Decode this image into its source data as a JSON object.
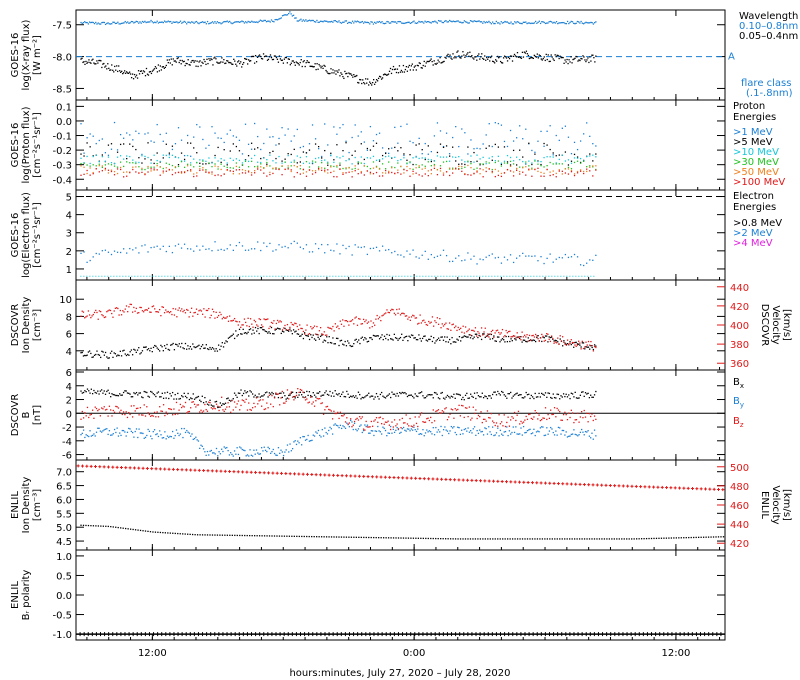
{
  "xaxis": {
    "label": "hours:minutes, July 27, 2020 – July 28, 2020",
    "range_hours": [
      8.5,
      38.25
    ],
    "ticks": [
      {
        "h": 12,
        "label": "12:00"
      },
      {
        "h": 24,
        "label": "0:00"
      },
      {
        "h": 36,
        "label": "12:00"
      }
    ]
  },
  "colors": {
    "black": "#000000",
    "blue": "#1a7fd4",
    "cyan": "#16c7d9",
    "green": "#1fc21f",
    "yellow": "#e6c800",
    "orange": "#f08020",
    "red": "#e21818",
    "magenta": "#e020e0"
  },
  "chart_data": [
    {
      "type": "scatter",
      "panel": "xray",
      "ylabel": [
        "GOES-16",
        "log(X-ray flux)",
        "[W m⁻²]"
      ],
      "ylim": [
        -8.65,
        -7.3
      ],
      "yticks": [
        -8.5,
        -8.0,
        -7.5
      ],
      "dashed_line": {
        "y": -8.0,
        "marker": "A",
        "color": "#1a7fd4"
      },
      "legend_title": "Wavelength",
      "series": [
        {
          "name": "0.10–0.8nm",
          "color": "#1a7fd4",
          "key": [
            [
              8.5,
              -7.46
            ],
            [
              10,
              -7.47
            ],
            [
              12,
              -7.44
            ],
            [
              14,
              -7.46
            ],
            [
              16,
              -7.45
            ],
            [
              17.5,
              -7.43
            ],
            [
              18.3,
              -7.3
            ],
            [
              18.6,
              -7.42
            ],
            [
              20,
              -7.44
            ],
            [
              22,
              -7.46
            ],
            [
              24,
              -7.45
            ],
            [
              26,
              -7.44
            ],
            [
              28,
              -7.46
            ],
            [
              30,
              -7.45
            ],
            [
              32.3,
              -7.46
            ]
          ]
        },
        {
          "name": "0.05–0.4nm",
          "color": "#000000",
          "key": [
            [
              8.5,
              -8.05
            ],
            [
              9.5,
              -8.1
            ],
            [
              10.5,
              -8.2
            ],
            [
              11,
              -8.3
            ],
            [
              12,
              -8.2
            ],
            [
              13,
              -8.05
            ],
            [
              14,
              -8.1
            ],
            [
              15,
              -8.05
            ],
            [
              16,
              -8.1
            ],
            [
              17,
              -8.0
            ],
            [
              18,
              -8.05
            ],
            [
              19,
              -8.1
            ],
            [
              20,
              -8.2
            ],
            [
              21,
              -8.3
            ],
            [
              22,
              -8.4
            ],
            [
              23,
              -8.2
            ],
            [
              24,
              -8.15
            ],
            [
              25,
              -8.05
            ],
            [
              26,
              -7.95
            ],
            [
              27,
              -8.0
            ],
            [
              28,
              -8.05
            ],
            [
              29,
              -7.95
            ],
            [
              30,
              -8.0
            ],
            [
              31,
              -8.05
            ],
            [
              32.3,
              -8.02
            ]
          ]
        }
      ],
      "extra_legend": [
        "flare class",
        "(.1-.8nm)"
      ]
    },
    {
      "type": "scatter",
      "panel": "proton",
      "ylabel": [
        "GOES-16",
        "log(Proton flux)",
        "[cm⁻²s⁻¹sr⁻¹]"
      ],
      "ylim": [
        -0.46,
        0.13
      ],
      "yticks": [
        -0.4,
        -0.3,
        -0.2,
        -0.1,
        0.0,
        0.1
      ],
      "legend_title": [
        "Proton",
        "Energies"
      ],
      "series": [
        {
          "name": ">1 MeV",
          "color": "#1a7fd4",
          "center": -0.12,
          "spread": 0.12
        },
        {
          "name": ">5 MeV",
          "color": "#000000",
          "center": -0.22,
          "spread": 0.08
        },
        {
          "name": ">10 MeV",
          "color": "#16c7d9",
          "center": -0.26,
          "spread": 0.03
        },
        {
          "name": ">30 MeV",
          "color": "#1fc21f",
          "center": -0.3,
          "spread": 0.03
        },
        {
          "name": ">50 MeV",
          "color": "#f08020",
          "center": -0.33,
          "spread": 0.03
        },
        {
          "name": ">100 MeV",
          "color": "#e21818",
          "center": -0.35,
          "spread": 0.03
        }
      ]
    },
    {
      "type": "scatter",
      "panel": "electron",
      "ylabel": [
        "GOES-16",
        "log(Electron flux)",
        "[cm⁻²s⁻¹sr⁻¹]"
      ],
      "ylim": [
        0.5,
        5.25
      ],
      "yticks": [
        1,
        2,
        3,
        4,
        5
      ],
      "dashed_line": {
        "y": 5.0,
        "color": "#000000"
      },
      "legend_title": [
        "Electron",
        "Energies"
      ],
      "series": [
        {
          "name": ">0.8 MeV",
          "color": "#000000"
        },
        {
          "name": ">2 MeV",
          "color": "#1a7fd4",
          "key": [
            [
              9,
              1.7
            ],
            [
              12,
              2.2
            ],
            [
              15,
              2.3
            ],
            [
              18,
              2.3
            ],
            [
              21,
              2.1
            ],
            [
              24,
              1.9
            ],
            [
              27,
              1.6
            ],
            [
              30,
              1.6
            ],
            [
              32.3,
              1.5
            ]
          ]
        },
        {
          "name": ">4 MeV",
          "color": "#e020e0"
        }
      ],
      "baseline": {
        "y": 0.6,
        "color": "#16c7d9"
      }
    },
    {
      "type": "scatter",
      "panel": "dscovr-density-velocity",
      "ylabel": [
        "DSCOVR",
        "Ion Density",
        "[cm⁻³]"
      ],
      "ylabel_right": [
        "DSCOVR",
        "Velocity",
        "[km/s]"
      ],
      "ylim": [
        2,
        12
      ],
      "yticks": [
        4,
        6,
        8,
        10
      ],
      "ylim_right": [
        355,
        445
      ],
      "yticks_right": [
        360,
        380,
        400,
        420,
        440
      ],
      "series": [
        {
          "name": "Ion Density",
          "color": "#000000",
          "key": [
            [
              8.5,
              3.8
            ],
            [
              10,
              3.6
            ],
            [
              11,
              3.9
            ],
            [
              12,
              4.3
            ],
            [
              13,
              4.6
            ],
            [
              14,
              4.5
            ],
            [
              15,
              4.4
            ],
            [
              16,
              6.4
            ],
            [
              18,
              6.4
            ],
            [
              19,
              5.8
            ],
            [
              20,
              5.4
            ],
            [
              21,
              4.8
            ],
            [
              22,
              5.6
            ],
            [
              23,
              5.6
            ],
            [
              24,
              5.6
            ],
            [
              25,
              5.3
            ],
            [
              26,
              5.3
            ],
            [
              27,
              5.8
            ],
            [
              28,
              5.4
            ],
            [
              30,
              5.5
            ],
            [
              31,
              4.9
            ],
            [
              32.3,
              4.5
            ]
          ]
        },
        {
          "name": "Velocity",
          "color": "#e21818",
          "key": [
            [
              8.5,
              410
            ],
            [
              10,
              412
            ],
            [
              11,
              418
            ],
            [
              12,
              416
            ],
            [
              13,
              414
            ],
            [
              14,
              414
            ],
            [
              15,
              412
            ],
            [
              16,
              403
            ],
            [
              17,
              403
            ],
            [
              18,
              400
            ],
            [
              19,
              396
            ],
            [
              20,
              393
            ],
            [
              21,
              405
            ],
            [
              22,
              402
            ],
            [
              23,
              416
            ],
            [
              24,
              407
            ],
            [
              25,
              404
            ],
            [
              26,
              398
            ],
            [
              27,
              393
            ],
            [
              28,
              391
            ],
            [
              29,
              388
            ],
            [
              30,
              388
            ],
            [
              31,
              383
            ],
            [
              32.3,
              378
            ]
          ]
        }
      ]
    },
    {
      "type": "scatter",
      "panel": "dscovr-bfield",
      "ylabel": [
        "DSCOVR",
        "B",
        "[nT]"
      ],
      "ylim": [
        -6.5,
        6
      ],
      "yticks": [
        -6,
        -4,
        -2,
        0,
        2,
        4,
        6
      ],
      "zero_line": true,
      "series": [
        {
          "name": "Bx",
          "color": "#000000",
          "key": [
            [
              8.5,
              3.2
            ],
            [
              10,
              3.0
            ],
            [
              12,
              2.8
            ],
            [
              14,
              2.5
            ],
            [
              15,
              1.2
            ],
            [
              16,
              3.0
            ],
            [
              18,
              2.6
            ],
            [
              20,
              3.0
            ],
            [
              22,
              2.6
            ],
            [
              24,
              2.8
            ],
            [
              26,
              2.5
            ],
            [
              28,
              2.8
            ],
            [
              30,
              2.6
            ],
            [
              32.3,
              2.8
            ]
          ]
        },
        {
          "name": "By",
          "color": "#1a7fd4",
          "key": [
            [
              8.5,
              -3.0
            ],
            [
              10,
              -2.6
            ],
            [
              12,
              -3.0
            ],
            [
              13.5,
              -2.8
            ],
            [
              14.5,
              -5.5
            ],
            [
              16,
              -5.5
            ],
            [
              18,
              -5.5
            ],
            [
              19,
              -3.5
            ],
            [
              20,
              -2.5
            ],
            [
              21,
              -1.5
            ],
            [
              22,
              -2.5
            ],
            [
              24,
              -2.5
            ],
            [
              26,
              -2.5
            ],
            [
              28,
              -2.5
            ],
            [
              30,
              -2.5
            ],
            [
              32.3,
              -3.0
            ]
          ]
        },
        {
          "name": "Bz",
          "color": "#e21818",
          "key": [
            [
              8.5,
              0.0
            ],
            [
              10,
              0.5
            ],
            [
              12,
              0.4
            ],
            [
              14,
              1.0
            ],
            [
              15,
              1.5
            ],
            [
              16,
              1.0
            ],
            [
              17,
              1.5
            ],
            [
              18,
              2.5
            ],
            [
              19,
              2.8
            ],
            [
              20,
              0.5
            ],
            [
              21,
              -1.0
            ],
            [
              22,
              -1.5
            ],
            [
              24,
              -1.0
            ],
            [
              26,
              0.5
            ],
            [
              28,
              -1.0
            ],
            [
              30,
              0.0
            ],
            [
              32.3,
              -0.5
            ]
          ]
        }
      ]
    },
    {
      "type": "scatter",
      "panel": "enlil-density-velocity",
      "ylabel": [
        "ENLIL",
        "Ion Density",
        "[cm⁻³]"
      ],
      "ylabel_right": [
        "ENLIL",
        "Velocity",
        "[km/s]"
      ],
      "ylim": [
        4.25,
        7.35
      ],
      "yticks": [
        4.5,
        5.0,
        5.5,
        6.0,
        6.5,
        7.0
      ],
      "ylim_right": [
        415,
        505
      ],
      "yticks_right": [
        420,
        440,
        460,
        480,
        500
      ],
      "series": [
        {
          "name": "Ion Density",
          "color": "#000000",
          "key": [
            [
              8.5,
              5.1
            ],
            [
              10,
              5.05
            ],
            [
              12,
              4.85
            ],
            [
              14,
              4.75
            ],
            [
              18,
              4.7
            ],
            [
              22,
              4.65
            ],
            [
              26,
              4.6
            ],
            [
              30,
              4.6
            ],
            [
              34,
              4.6
            ],
            [
              38.25,
              4.68
            ]
          ]
        },
        {
          "name": "Velocity",
          "color": "#e21818",
          "key": [
            [
              8.5,
              501
            ],
            [
              38.25,
              476
            ]
          ]
        }
      ]
    },
    {
      "type": "line",
      "panel": "enlil-polarity",
      "ylabel": [
        "ENLIL",
        "Bᵣ polarity"
      ],
      "ylim": [
        -1.1,
        1.1
      ],
      "yticks": [
        -1.0,
        -0.5,
        0.0,
        0.5,
        1.0
      ],
      "series": [
        {
          "name": "Br polarity",
          "color": "#000000",
          "key": [
            [
              8.5,
              -1.0
            ],
            [
              38.25,
              -1.0
            ]
          ]
        }
      ]
    }
  ]
}
